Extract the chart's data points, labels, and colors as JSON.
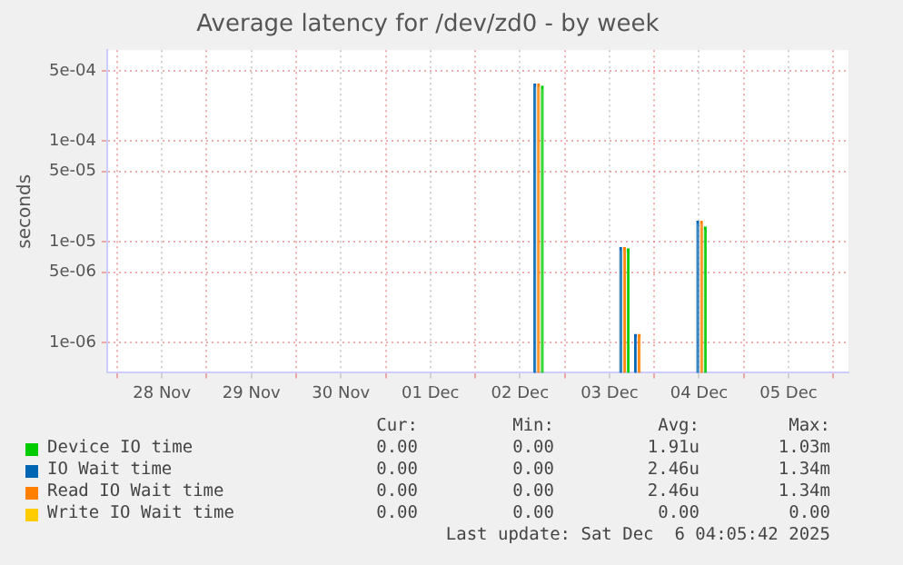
{
  "chart_data": {
    "type": "bar",
    "title": "Average latency for /dev/zd0 - by week",
    "ylabel": "seconds",
    "log": "y",
    "grid": true,
    "legend": "bottom",
    "xlim": [
      "2025-11-27T21:20",
      "2025-12-06T04:05"
    ],
    "xticks": [
      {
        "value": "2025-11-28T00:00",
        "label": null
      },
      {
        "value": "2025-11-28T12:00",
        "label": "28 Nov"
      },
      {
        "value": "2025-11-29T00:00",
        "label": null
      },
      {
        "value": "2025-11-29T12:00",
        "label": "29 Nov"
      },
      {
        "value": "2025-11-30T00:00",
        "label": null
      },
      {
        "value": "2025-11-30T12:00",
        "label": "30 Nov"
      },
      {
        "value": "2025-12-01T00:00",
        "label": null
      },
      {
        "value": "2025-12-01T12:00",
        "label": "01 Dec"
      },
      {
        "value": "2025-12-02T00:00",
        "label": null
      },
      {
        "value": "2025-12-02T12:00",
        "label": "02 Dec"
      },
      {
        "value": "2025-12-03T00:00",
        "label": null
      },
      {
        "value": "2025-12-03T12:00",
        "label": "03 Dec"
      },
      {
        "value": "2025-12-04T00:00",
        "label": null
      },
      {
        "value": "2025-12-04T12:00",
        "label": "04 Dec"
      },
      {
        "value": "2025-12-05T00:00",
        "label": null
      },
      {
        "value": "2025-12-05T12:00",
        "label": "05 Dec"
      },
      {
        "value": "2025-12-06T00:00",
        "label": null
      }
    ],
    "ylim": [
      5e-07,
      0.0008
    ],
    "yticks": [
      {
        "value": 1e-06,
        "label": "1e-06"
      },
      {
        "value": 5e-06,
        "label": "5e-06"
      },
      {
        "value": 1e-05,
        "label": "1e-05"
      },
      {
        "value": 5e-05,
        "label": "5e-05"
      },
      {
        "value": 0.0001,
        "label": "1e-04"
      },
      {
        "value": 0.0005,
        "label": "5e-04"
      }
    ],
    "series": [
      {
        "name": "Device IO time",
        "color": "#00cc00",
        "x": [
          "2025-12-02T18:00",
          "2025-12-03T17:00",
          "2025-12-04T13:40"
        ],
        "values": [
          0.00035,
          8.5e-06,
          1.4e-05
        ]
      },
      {
        "name": "IO Wait time",
        "color": "#0066b3",
        "x": [
          "2025-12-02T16:00",
          "2025-12-03T15:00",
          "2025-12-03T19:00",
          "2025-12-04T11:40"
        ],
        "values": [
          0.00037,
          8.8e-06,
          1.2e-06,
          1.6e-05
        ]
      },
      {
        "name": "Read IO Wait time",
        "color": "#ff8000",
        "x": [
          "2025-12-02T17:00",
          "2025-12-03T16:00",
          "2025-12-03T20:00",
          "2025-12-04T12:40"
        ],
        "values": [
          0.00037,
          8.8e-06,
          1.2e-06,
          1.6e-05
        ]
      },
      {
        "name": "Write IO Wait time",
        "color": "#ffcc00"
      }
    ],
    "annotations": [
      "Cur:",
      "Min:",
      "Avg:",
      "Max:",
      "0.00",
      "0.00",
      "1.91u",
      "1.03m",
      "0.00",
      "0.00",
      "2.46u",
      "1.34m",
      "0.00",
      "0.00",
      "2.46u",
      "1.34m",
      "0.00",
      "0.00",
      "0.00",
      "0.00",
      "Last update: Sat Dec  6 04:05:42 2025"
    ]
  }
}
